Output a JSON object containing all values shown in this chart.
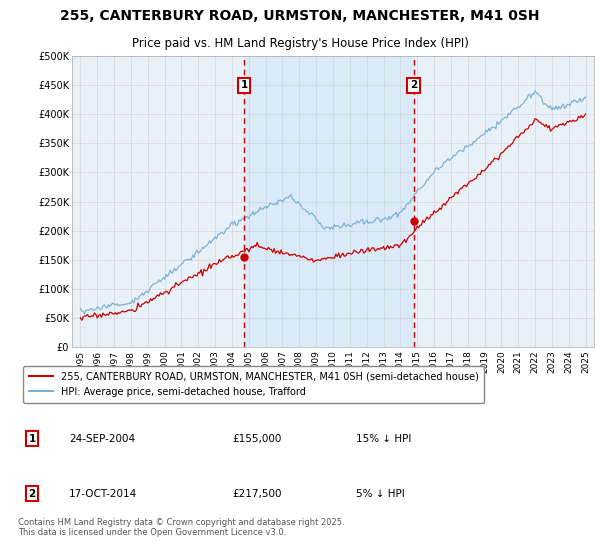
{
  "title_line1": "255, CANTERBURY ROAD, URMSTON, MANCHESTER, M41 0SH",
  "title_line2": "Price paid vs. HM Land Registry's House Price Index (HPI)",
  "background_color": "#ffffff",
  "plot_bg_color": "#e8f0f8",
  "shade_bg_color": "#daeaf8",
  "grid_color": "#cccccc",
  "red_line_color": "#cc0000",
  "blue_line_color": "#7aafd4",
  "sale1_date": "24-SEP-2004",
  "sale1_price": 155000,
  "sale1_label": "15% ↓ HPI",
  "sale1_x": 2004.73,
  "sale2_date": "17-OCT-2014",
  "sale2_price": 217500,
  "sale2_label": "5% ↓ HPI",
  "sale2_x": 2014.79,
  "vline_color": "#cc0000",
  "annotation_box_color": "#cc0000",
  "legend_line1": "255, CANTERBURY ROAD, URMSTON, MANCHESTER, M41 0SH (semi-detached house)",
  "legend_line2": "HPI: Average price, semi-detached house, Trafford",
  "footnote": "Contains HM Land Registry data © Crown copyright and database right 2025.\nThis data is licensed under the Open Government Licence v3.0.",
  "xmin": 1994.5,
  "xmax": 2025.5,
  "ymin": 0,
  "ymax": 500000,
  "yticks": [
    0,
    50000,
    100000,
    150000,
    200000,
    250000,
    300000,
    350000,
    400000,
    450000,
    500000
  ],
  "ytick_labels": [
    "£0",
    "£50K",
    "£100K",
    "£150K",
    "£200K",
    "£250K",
    "£300K",
    "£350K",
    "£400K",
    "£450K",
    "£500K"
  ],
  "xticks": [
    1995,
    1996,
    1997,
    1998,
    1999,
    2000,
    2001,
    2002,
    2003,
    2004,
    2005,
    2006,
    2007,
    2008,
    2009,
    2010,
    2011,
    2012,
    2013,
    2014,
    2015,
    2016,
    2017,
    2018,
    2019,
    2020,
    2021,
    2022,
    2023,
    2024,
    2025
  ],
  "fig_width": 6.0,
  "fig_height": 5.6,
  "dpi": 100
}
